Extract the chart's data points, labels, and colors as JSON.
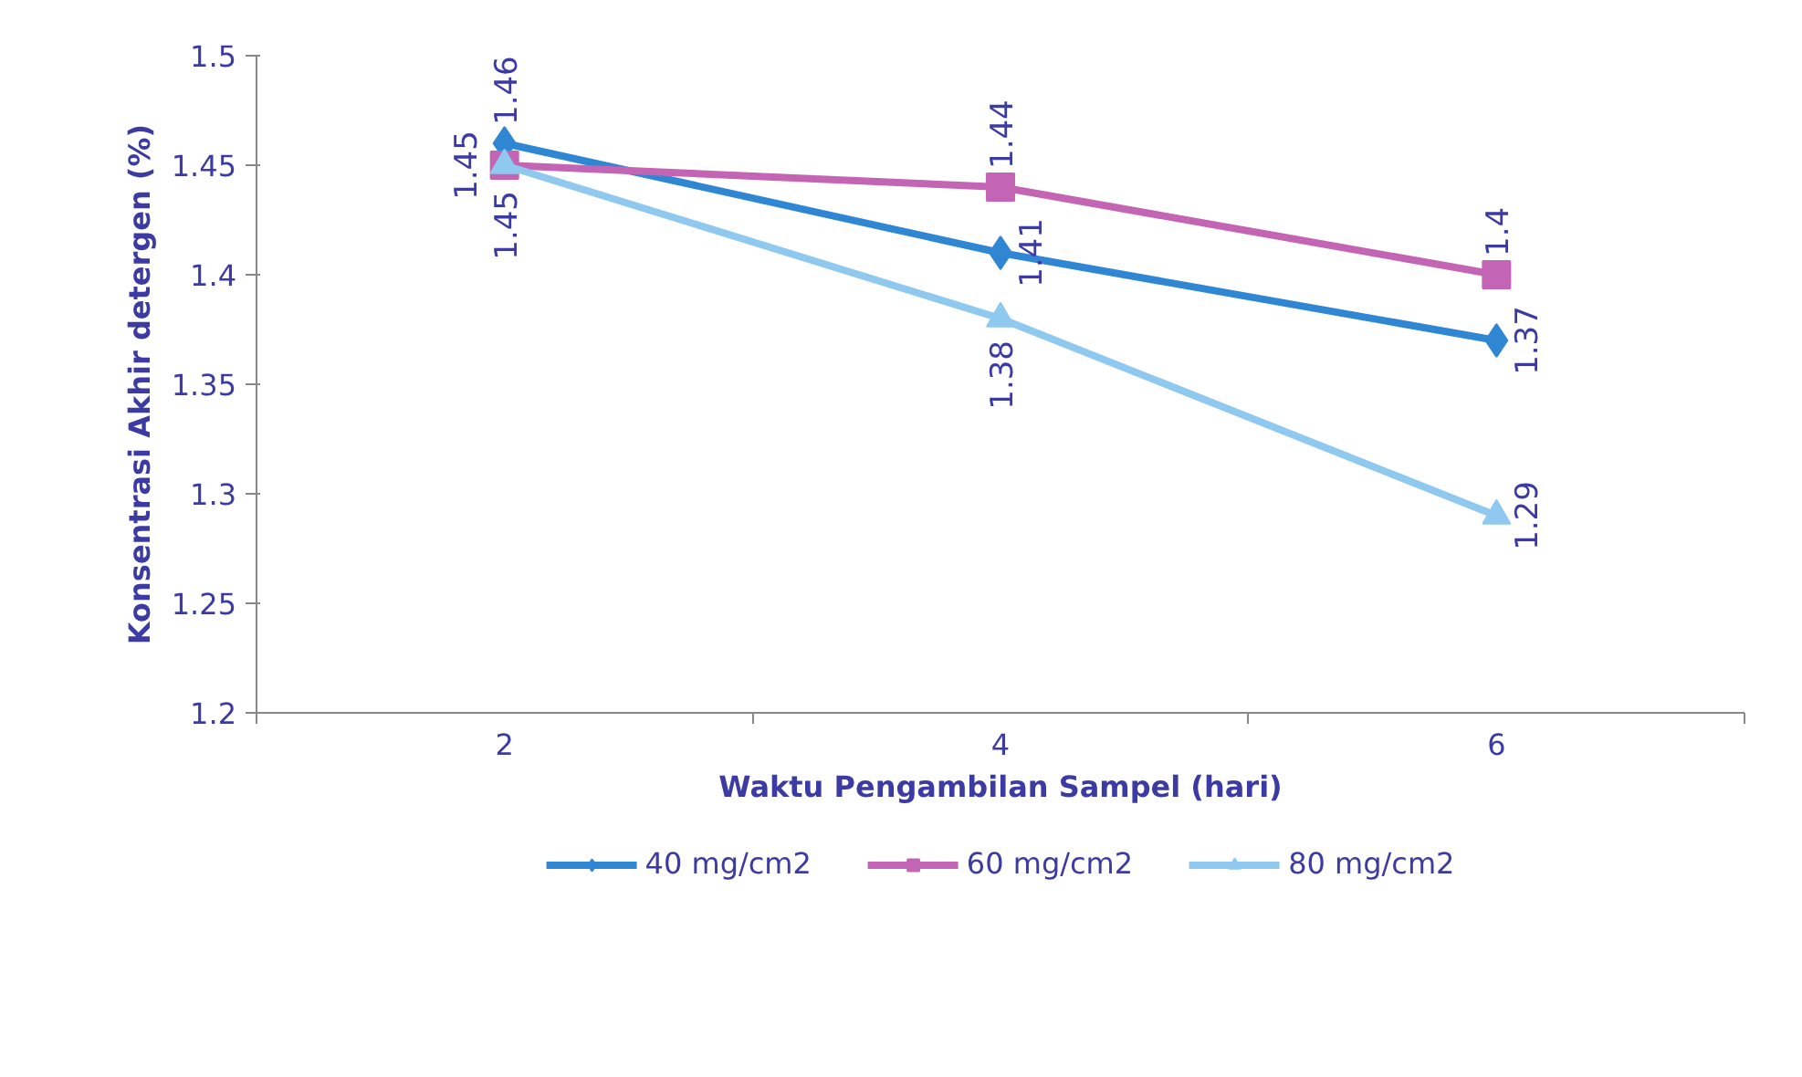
{
  "chart_data": {
    "type": "line",
    "xlabel": "Waktu Pengambilan Sampel (hari)",
    "ylabel": "Konsentrasi Akhir detergen (%)",
    "categories": [
      "2",
      "4",
      "6"
    ],
    "series": [
      {
        "name": "40 mg/cm2",
        "color": "#2f86d2",
        "marker": "diamond",
        "values": [
          1.46,
          1.41,
          1.37
        ]
      },
      {
        "name": "60 mg/cm2",
        "color": "#c464b4",
        "marker": "square",
        "values": [
          1.45,
          1.44,
          1.4
        ]
      },
      {
        "name": "80 mg/cm2",
        "color": "#8fc9ef",
        "marker": "triangle",
        "values": [
          1.45,
          1.38,
          1.29
        ]
      }
    ],
    "ylim": [
      1.2,
      1.5
    ],
    "yticks": [
      1.2,
      1.25,
      1.3,
      1.35,
      1.4,
      1.45,
      1.5
    ],
    "grid": false,
    "legend": "bottom",
    "data_labels": true,
    "line_style": "solid"
  }
}
